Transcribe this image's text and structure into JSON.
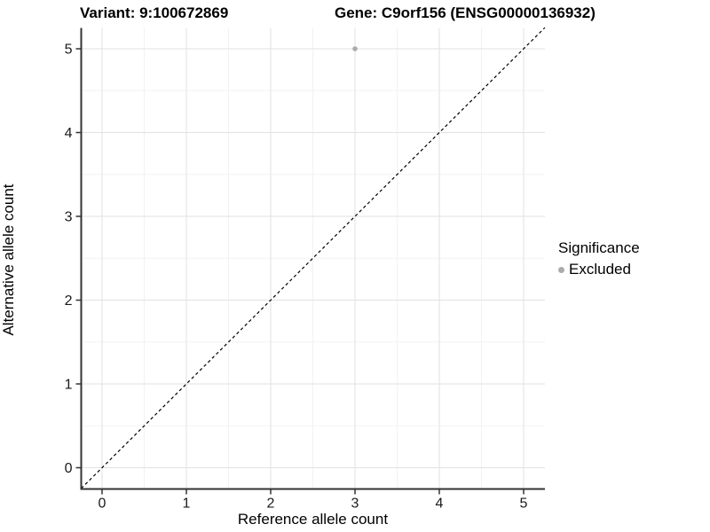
{
  "header": {
    "variant_title": "Variant: 9:100672869",
    "gene_title": "Gene: C9orf156 (ENSG00000136932)"
  },
  "chart_data": {
    "type": "scatter",
    "title_left": "Variant: 9:100672869",
    "title_right": "Gene: C9orf156 (ENSG00000136932)",
    "xlabel": "Reference allele count",
    "ylabel": "Alternative allele count",
    "xlim": [
      -0.25,
      5.25
    ],
    "ylim": [
      -0.25,
      5.25
    ],
    "xticks": [
      0,
      1,
      2,
      3,
      4,
      5
    ],
    "yticks": [
      0,
      1,
      2,
      3,
      4,
      5
    ],
    "minor_ticks": [
      0.5,
      1.5,
      2.5,
      3.5,
      4.5
    ],
    "grid": "major and minor gridlines on white panel",
    "reference_line": {
      "kind": "identity y=x",
      "style": "dashed",
      "color": "#000000"
    },
    "series": [
      {
        "name": "Excluded",
        "color": "#ababab",
        "points": [
          {
            "x": 3,
            "y": 5
          }
        ]
      }
    ],
    "legend": {
      "title": "Significance",
      "position": "right",
      "entries": [
        {
          "label": "Excluded",
          "color": "#ababab"
        }
      ]
    },
    "colors": {
      "major_grid": "#e2e2e2",
      "minor_grid": "#f2f2f2",
      "axis_line": "#333333",
      "tick_label": "#1a1a1a",
      "point": "#ababab"
    }
  }
}
